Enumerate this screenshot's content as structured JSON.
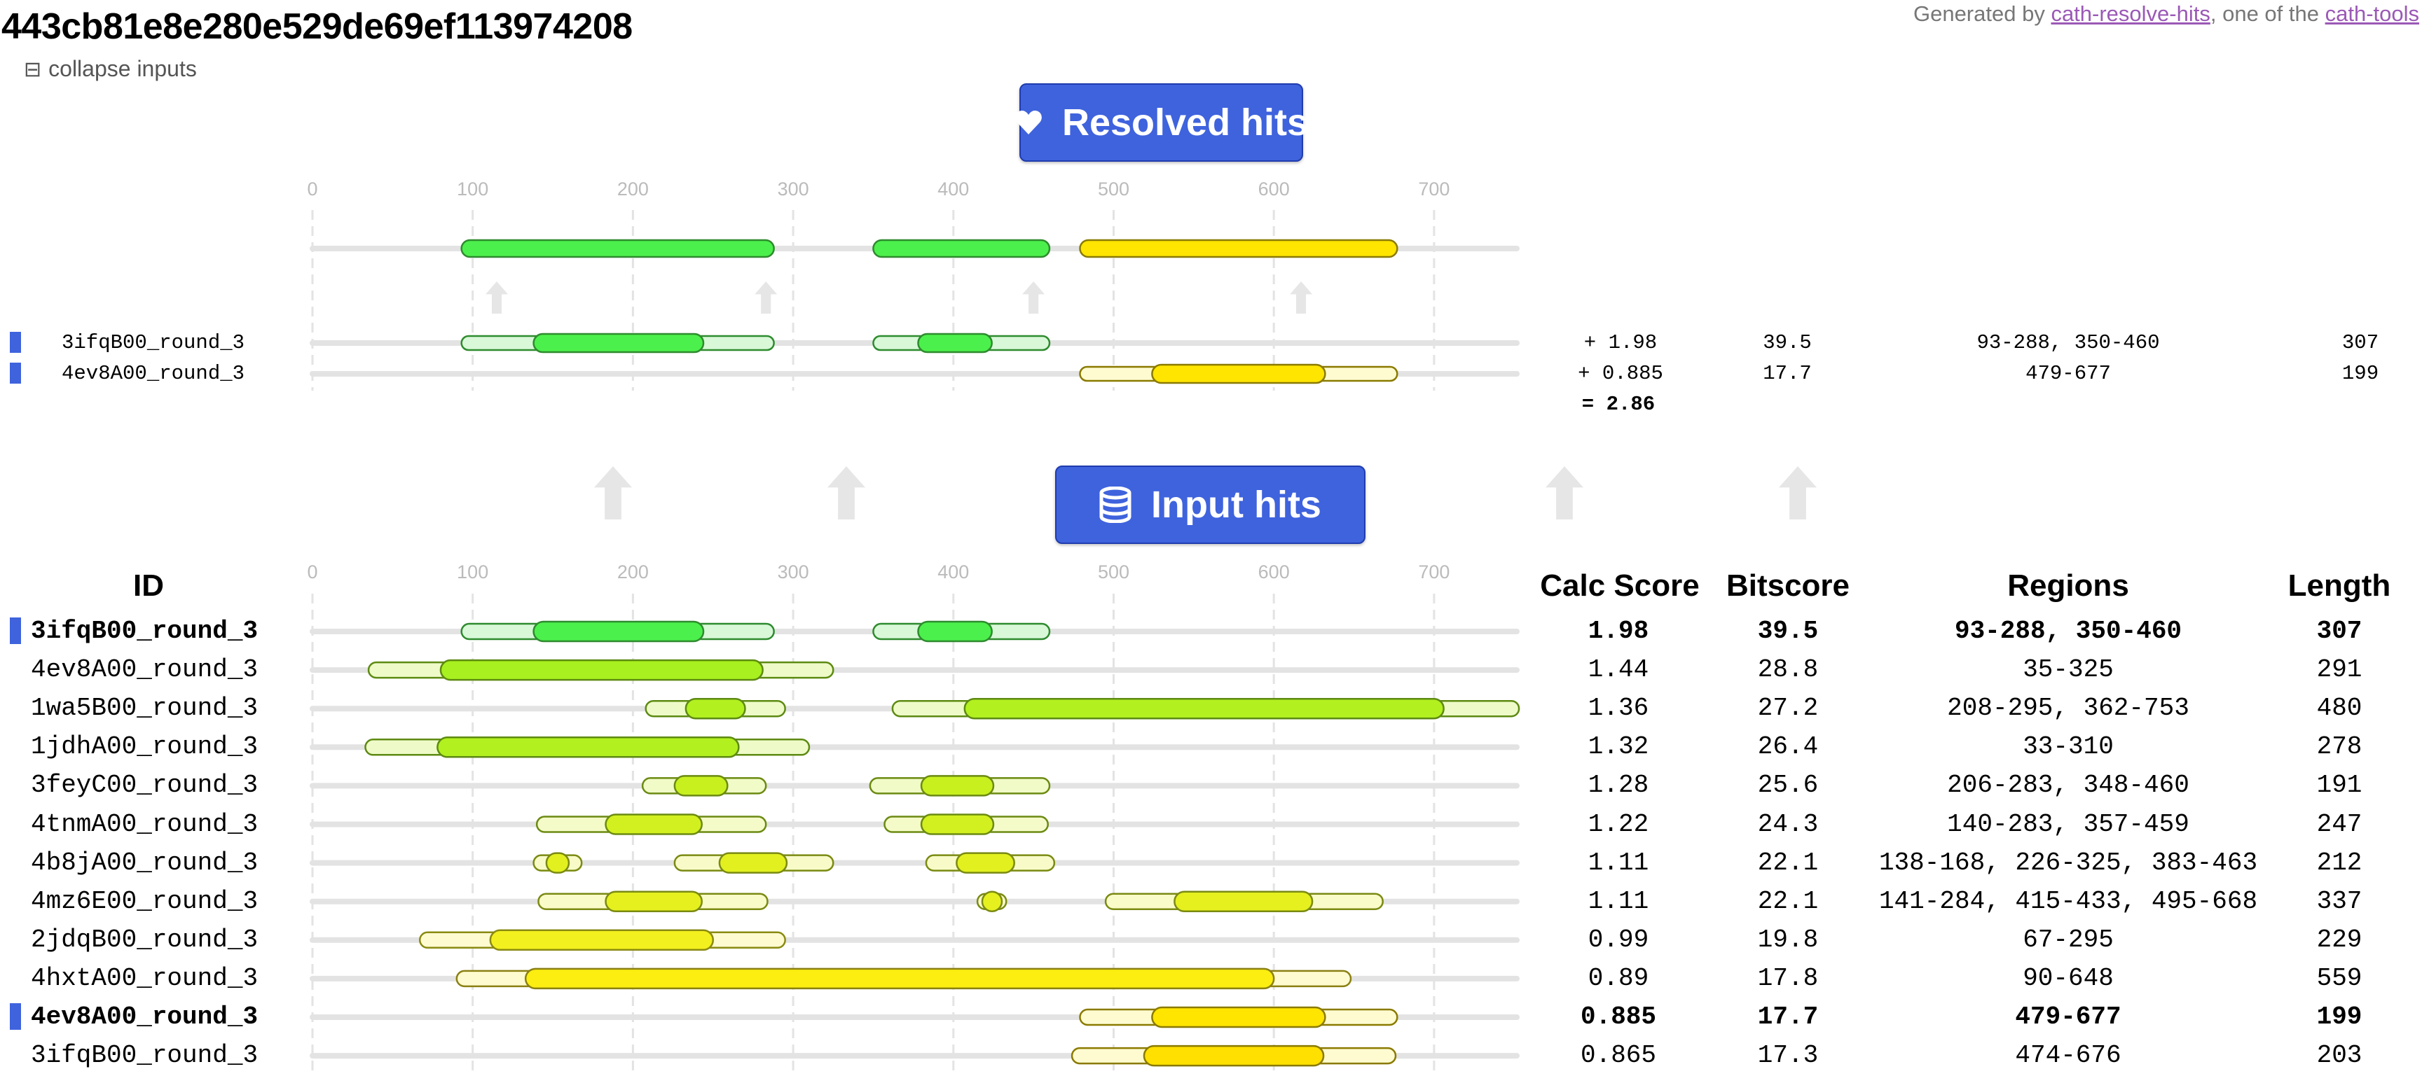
{
  "title": "443cb81e8e280e529de69ef113974208",
  "generated": {
    "prefix": "Generated by ",
    "link1": "cath-resolve-hits",
    "middle": ", one of the ",
    "link2": "cath-tools"
  },
  "collapse_label": "collapse inputs",
  "resolved_banner": {
    "label": "Resolved hits",
    "icon": "heart-icon"
  },
  "input_banner": {
    "label": "Input hits",
    "icon": "database-icon"
  },
  "axis_ticks": [
    "0",
    "100",
    "200",
    "300",
    "400",
    "500",
    "600",
    "700"
  ],
  "colors": {
    "green": "#4cf04c",
    "yellow": "#ffe800",
    "lime": "#b5f51f",
    "selected_marker": "#3f63dd",
    "banner": "#3f63dd"
  },
  "resolved": {
    "hits": [
      {
        "id": "3ifqB00_round_3",
        "score": "+ 1.98",
        "bitscore": "39.5",
        "regions": "93-288, 350-460",
        "length": "307"
      },
      {
        "id": "4ev8A00_round_3",
        "score": "+ 0.885",
        "bitscore": "17.7",
        "regions": "479-677",
        "length": "199"
      }
    ],
    "total": "= 2.86"
  },
  "table": {
    "headers": {
      "id": "ID",
      "score": "Calc Score",
      "bitscore": "Bitscore",
      "regions": "Regions",
      "length": "Length"
    },
    "rows": [
      {
        "id": "3ifqB00_round_3",
        "score": "1.98",
        "bitscore": "39.5",
        "regions": "93-288, 350-460",
        "length": "307",
        "selected": true
      },
      {
        "id": "4ev8A00_round_3",
        "score": "1.44",
        "bitscore": "28.8",
        "regions": "35-325",
        "length": "291",
        "selected": false
      },
      {
        "id": "1wa5B00_round_3",
        "score": "1.36",
        "bitscore": "27.2",
        "regions": "208-295, 362-753",
        "length": "480",
        "selected": false
      },
      {
        "id": "1jdhA00_round_3",
        "score": "1.32",
        "bitscore": "26.4",
        "regions": "33-310",
        "length": "278",
        "selected": false
      },
      {
        "id": "3feyC00_round_3",
        "score": "1.28",
        "bitscore": "25.6",
        "regions": "206-283, 348-460",
        "length": "191",
        "selected": false
      },
      {
        "id": "4tnmA00_round_3",
        "score": "1.22",
        "bitscore": "24.3",
        "regions": "140-283, 357-459",
        "length": "247",
        "selected": false
      },
      {
        "id": "4b8jA00_round_3",
        "score": "1.11",
        "bitscore": "22.1",
        "regions": "138-168, 226-325, 383-463",
        "length": "212",
        "selected": false
      },
      {
        "id": "4mz6E00_round_3",
        "score": "1.11",
        "bitscore": "22.1",
        "regions": "141-284, 415-433, 495-668",
        "length": "337",
        "selected": false
      },
      {
        "id": "2jdqB00_round_3",
        "score": "0.99",
        "bitscore": "19.8",
        "regions": "67-295",
        "length": "229",
        "selected": false
      },
      {
        "id": "4hxtA00_round_3",
        "score": "0.89",
        "bitscore": "17.8",
        "regions": "90-648",
        "length": "559",
        "selected": false
      },
      {
        "id": "4ev8A00_round_3",
        "score": "0.885",
        "bitscore": "17.7",
        "regions": "479-677",
        "length": "199",
        "selected": true
      },
      {
        "id": "3ifqB00_round_3",
        "score": "0.865",
        "bitscore": "17.3",
        "regions": "474-676",
        "length": "203",
        "selected": false
      }
    ]
  }
}
